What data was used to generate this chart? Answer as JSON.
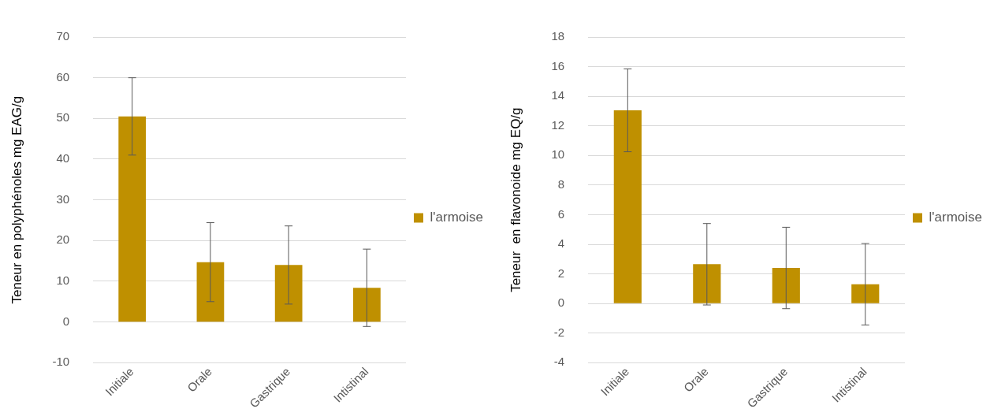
{
  "chart_data": [
    {
      "type": "bar",
      "ylabel": "Teneur en polyphénoles mg EAG/g",
      "categories": [
        "Initiale",
        "Orale",
        "Gastrique",
        "Intistinal"
      ],
      "ylim": [
        -10,
        70
      ],
      "yticks": [
        -10,
        0,
        10,
        20,
        30,
        40,
        50,
        60,
        70
      ],
      "grid": "y",
      "legend": "right",
      "series": [
        {
          "name": "l'armoise",
          "color": "#bf9000",
          "values": [
            50.5,
            14.7,
            14,
            8.4
          ],
          "errors": [
            9.5,
            9.7,
            9.6,
            9.5
          ]
        }
      ]
    },
    {
      "type": "bar",
      "ylabel": "Teneur  en flavonoide mg EQ/g",
      "categories": [
        "Initiale",
        "Orale",
        "Gastrique",
        "Intistinal"
      ],
      "ylim": [
        -4,
        18
      ],
      "yticks": [
        -4,
        -2,
        0,
        2,
        4,
        6,
        8,
        10,
        12,
        14,
        16,
        18
      ],
      "grid": "y",
      "legend": "right",
      "series": [
        {
          "name": "l'armoise",
          "color": "#bf9000",
          "values": [
            13.05,
            2.65,
            2.4,
            1.3
          ],
          "errors": [
            2.8,
            2.75,
            2.75,
            2.75
          ]
        }
      ]
    }
  ]
}
